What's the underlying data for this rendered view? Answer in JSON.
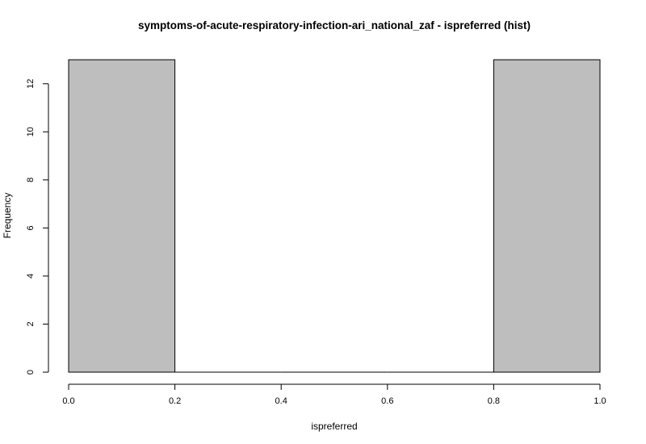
{
  "chart_data": {
    "type": "bar",
    "title": "symptoms-of-acute-respiratory-infection-ari_national_zaf - ispreferred (hist)",
    "xlabel": "ispreferred",
    "ylabel": "Frequency",
    "bins": [
      {
        "x0": 0.0,
        "x1": 0.2,
        "count": 13
      },
      {
        "x0": 0.2,
        "x1": 0.4,
        "count": 0
      },
      {
        "x0": 0.4,
        "x1": 0.6,
        "count": 0
      },
      {
        "x0": 0.6,
        "x1": 0.8,
        "count": 0
      },
      {
        "x0": 0.8,
        "x1": 1.0,
        "count": 13
      }
    ],
    "xlim": [
      0,
      1
    ],
    "ylim": [
      0,
      13
    ],
    "xticks": [
      "0.0",
      "0.2",
      "0.4",
      "0.6",
      "0.8",
      "1.0"
    ],
    "yticks": [
      "0",
      "2",
      "4",
      "6",
      "8",
      "10",
      "12"
    ],
    "bar_color": "#bebebe",
    "edge_color": "#000000",
    "grid": false,
    "legend": "none"
  }
}
